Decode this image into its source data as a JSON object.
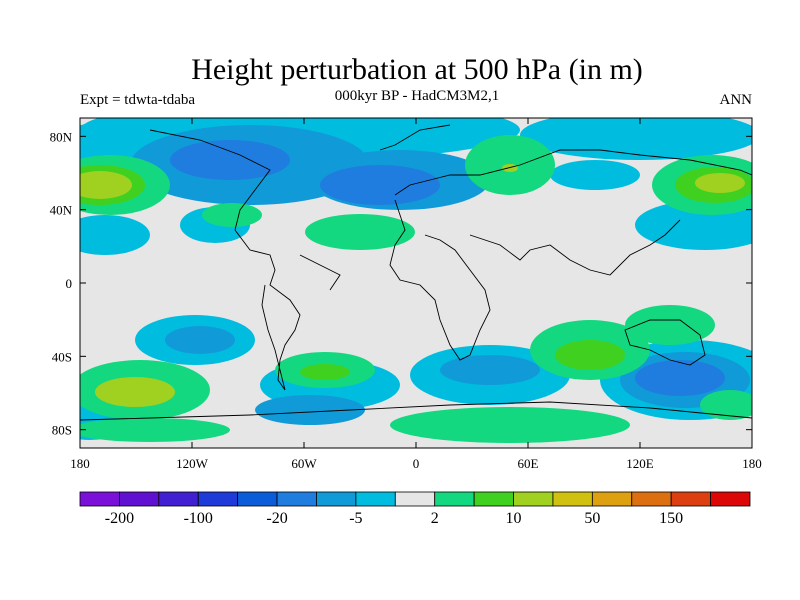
{
  "header": {
    "title": "Height perturbation at 500 hPa (in m)",
    "subtitle": "000kyr BP - HadCM3M2,1",
    "expt": "Expt = tdwta-tdaba",
    "season": "ANN"
  },
  "axes": {
    "lat_labels": [
      "80N",
      "40N",
      "0",
      "40S",
      "80S"
    ],
    "lon_labels": [
      "180",
      "120W",
      "60W",
      "0",
      "60E",
      "120E",
      "180"
    ]
  },
  "colorbar": {
    "colors": [
      "#7b10d8",
      "#6010d0",
      "#4020d0",
      "#1e3ad8",
      "#0a5cd8",
      "#1f7ddf",
      "#119ad8",
      "#00bde0",
      "#e6e6e6",
      "#14d880",
      "#40d020",
      "#a0d020",
      "#d0c010",
      "#dca010",
      "#dc7010",
      "#dc4010",
      "#dc0808"
    ],
    "labels": [
      "-200",
      "-100",
      "-20",
      "-5",
      "2",
      "10",
      "50",
      "150"
    ]
  },
  "map": {
    "extent": {
      "lon": [
        -180,
        180
      ],
      "lat": [
        -90,
        90
      ]
    },
    "background_color": "#e6e6e6",
    "note": ""
  }
}
